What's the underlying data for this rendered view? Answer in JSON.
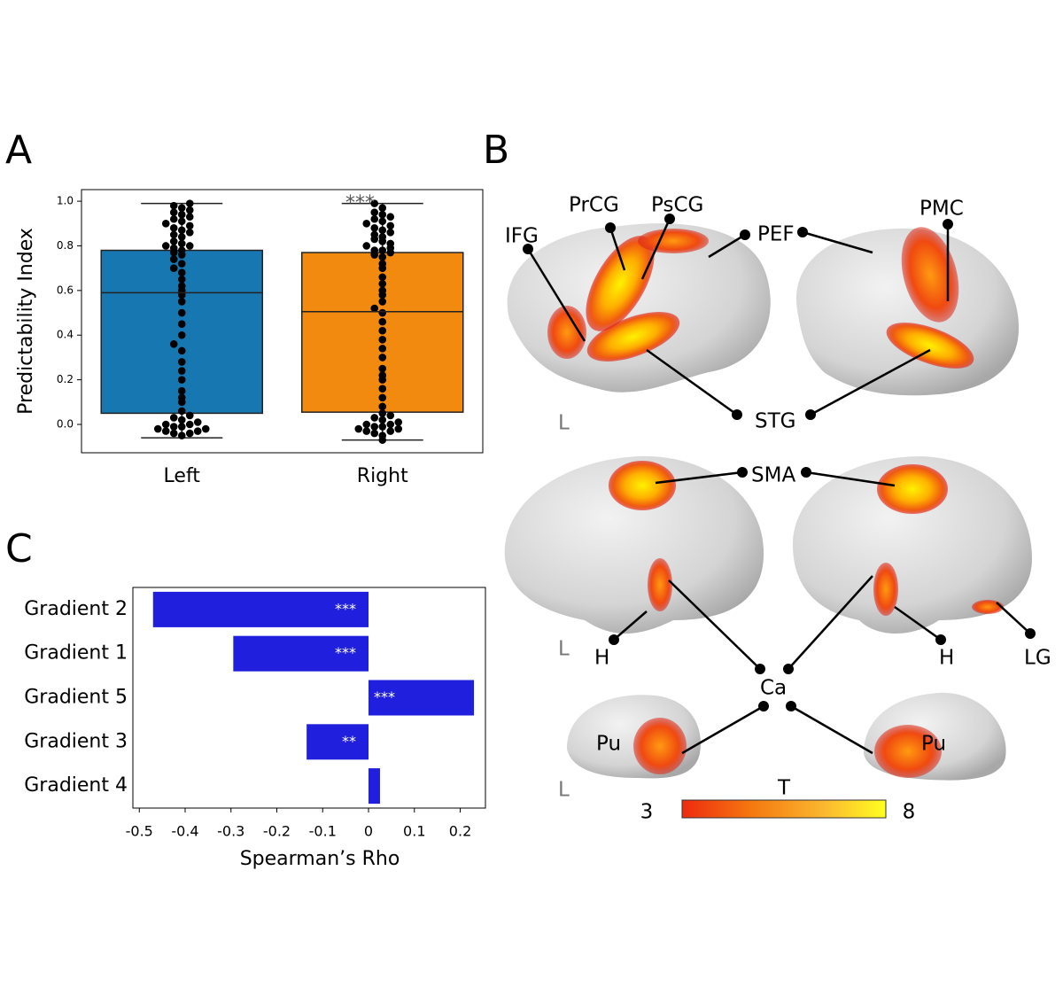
{
  "chart_data": [
    {
      "type": "box_swarm",
      "panel_label": "A",
      "ylabel": "Predictability Index",
      "annotation": "***",
      "categories": [
        "Left",
        "Right"
      ],
      "boxes": [
        {
          "color": "#1777b1",
          "whisker_low": -0.06,
          "q1": 0.05,
          "median": 0.59,
          "q3": 0.78,
          "whisker_high": 0.99,
          "points": [
            -0.05,
            -0.04,
            -0.04,
            -0.03,
            -0.03,
            -0.02,
            -0.02,
            -0.01,
            -0.01,
            0,
            0,
            0.01,
            0.02,
            0.03,
            0.04,
            0.06,
            0.1,
            0.12,
            0.15,
            0.2,
            0.24,
            0.28,
            0.33,
            0.36,
            0.4,
            0.45,
            0.5,
            0.55,
            0.58,
            0.6,
            0.62,
            0.65,
            0.68,
            0.7,
            0.72,
            0.74,
            0.76,
            0.77,
            0.78,
            0.79,
            0.8,
            0.81,
            0.82,
            0.84,
            0.85,
            0.86,
            0.87,
            0.88,
            0.89,
            0.9,
            0.91,
            0.92,
            0.93,
            0.94,
            0.95,
            0.96,
            0.97,
            0.98,
            0.99,
            0.8
          ]
        },
        {
          "color": "#f28a0f",
          "whisker_low": -0.07,
          "q1": 0.055,
          "median": 0.505,
          "q3": 0.77,
          "whisker_high": 0.99,
          "points": [
            -0.07,
            -0.05,
            -0.04,
            -0.03,
            -0.03,
            -0.02,
            -0.02,
            -0.01,
            -0.01,
            0,
            0,
            0.01,
            0.02,
            0.03,
            0.04,
            0.05,
            0.08,
            0.12,
            0.16,
            0.2,
            0.22,
            0.25,
            0.3,
            0.34,
            0.38,
            0.42,
            0.46,
            0.5,
            0.52,
            0.55,
            0.58,
            0.6,
            0.63,
            0.66,
            0.7,
            0.72,
            0.75,
            0.76,
            0.77,
            0.78,
            0.78,
            0.79,
            0.8,
            0.82,
            0.83,
            0.84,
            0.85,
            0.86,
            0.87,
            0.88,
            0.89,
            0.9,
            0.91,
            0.92,
            0.93,
            0.94,
            0.95,
            0.97,
            0.99,
            0.81
          ]
        }
      ],
      "ylim": [
        -0.127,
        1.052
      ],
      "yticks": [
        {
          "value": 0,
          "label": "0.0"
        },
        0.2,
        0.4,
        0.6,
        0.8,
        {
          "value": 1,
          "label": "1.0"
        }
      ]
    },
    {
      "type": "hbar",
      "panel_label": "C",
      "xlabel": "Spearman’s Rho",
      "categories": [
        "Gradient 2",
        "Gradient 1",
        "Gradient 5",
        "Gradient 3",
        "Gradient 4"
      ],
      "values": [
        -0.47,
        -0.295,
        0.23,
        -0.135,
        0.025
      ],
      "annotations": [
        "***",
        "***",
        "***",
        "**",
        null
      ],
      "color": "#1f1fdd",
      "xlim": [
        -0.514,
        0.255
      ],
      "xticks": [
        -0.5,
        -0.4,
        -0.3,
        -0.2,
        -0.1,
        0,
        0.1,
        0.2
      ]
    }
  ],
  "brain": {
    "panel_label": "B",
    "labels": [
      "IFG",
      "PrCG",
      "PsCG",
      "PEF",
      "PMC",
      "STG",
      "L",
      "SMA",
      "L",
      "H",
      "H",
      "LG",
      "Ca",
      "Pu",
      "Pu",
      "L"
    ],
    "colorbar": {
      "title": "T",
      "min": 3,
      "max": 8
    }
  }
}
